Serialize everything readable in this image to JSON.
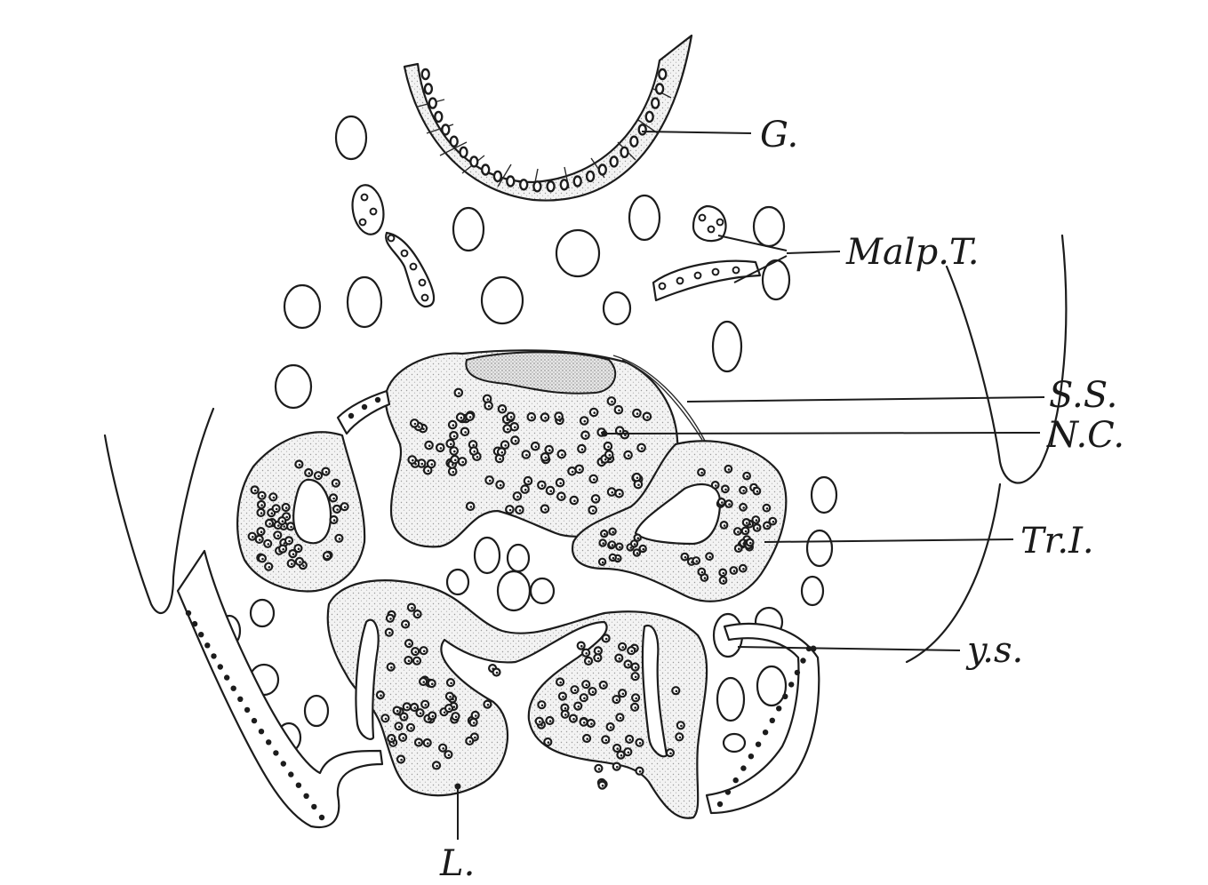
{
  "figure": {
    "labels": {
      "gut": "G.",
      "malpighian_tubules": "Malp.T.",
      "ss": "S.S.",
      "nerve_cord": "N.C.",
      "trl": "Tr.I.",
      "yolk_sphere": "y.s.",
      "l": "L."
    }
  }
}
